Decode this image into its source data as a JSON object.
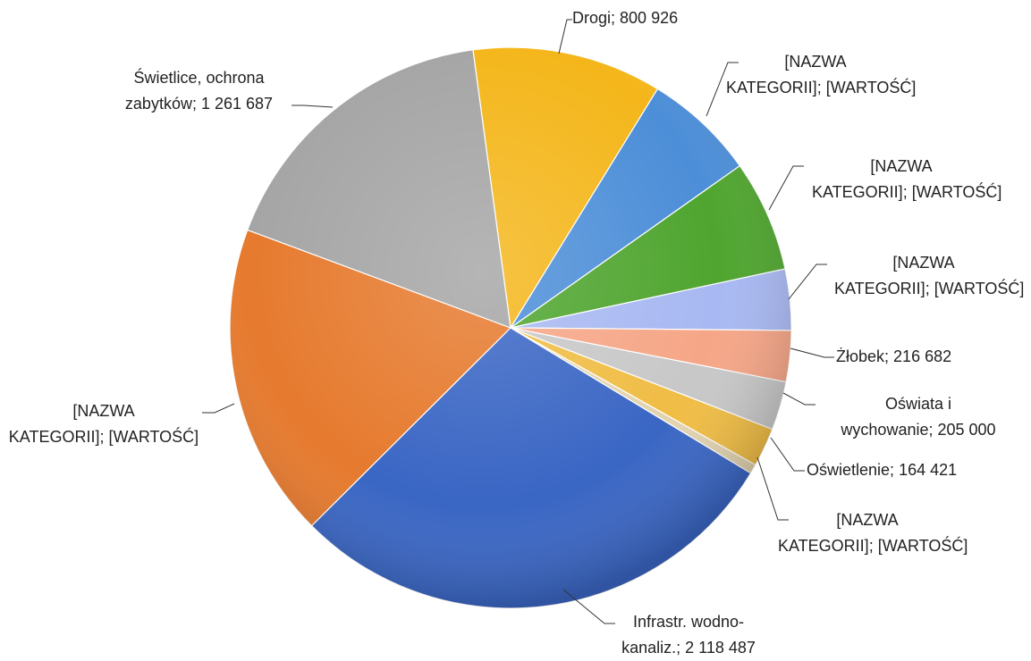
{
  "chart_data": {
    "type": "pie",
    "separator": "; ",
    "categories": [
      "Drogi",
      "[NAZWA KATEGORII]",
      "[NAZWA KATEGORII]",
      "[NAZWA KATEGORII]",
      "Żłobek",
      "Oświata i wychowanie",
      "Oświetlenie",
      "[NAZWA KATEGORII]",
      "Infrastr. wodno-kanaliz.",
      "[NAZWA KATEGORII]",
      "Świetlice, ochrona zabytków"
    ],
    "values": [
      800926,
      472000,
      472000,
      258000,
      216682,
      205000,
      164421,
      40000,
      2118487,
      1332000,
      1261687
    ],
    "value_labels": [
      "800 926",
      "[WARTOŚĆ]",
      "[WARTOŚĆ]",
      "[WARTOŚĆ]",
      "216 682",
      "205 000",
      "164 421",
      "[WARTOŚĆ]",
      "2 118 487",
      "[WARTOŚĆ]",
      "1 261 687"
    ],
    "colors": [
      "#f4b61a",
      "#4c8ed8",
      "#4fa52f",
      "#a8b8f2",
      "#f6a687",
      "#c8c8c8",
      "#f0bd45",
      "#e2d3b0",
      "#3a66c4",
      "#e67a2e",
      "#a5a5a5"
    ]
  }
}
